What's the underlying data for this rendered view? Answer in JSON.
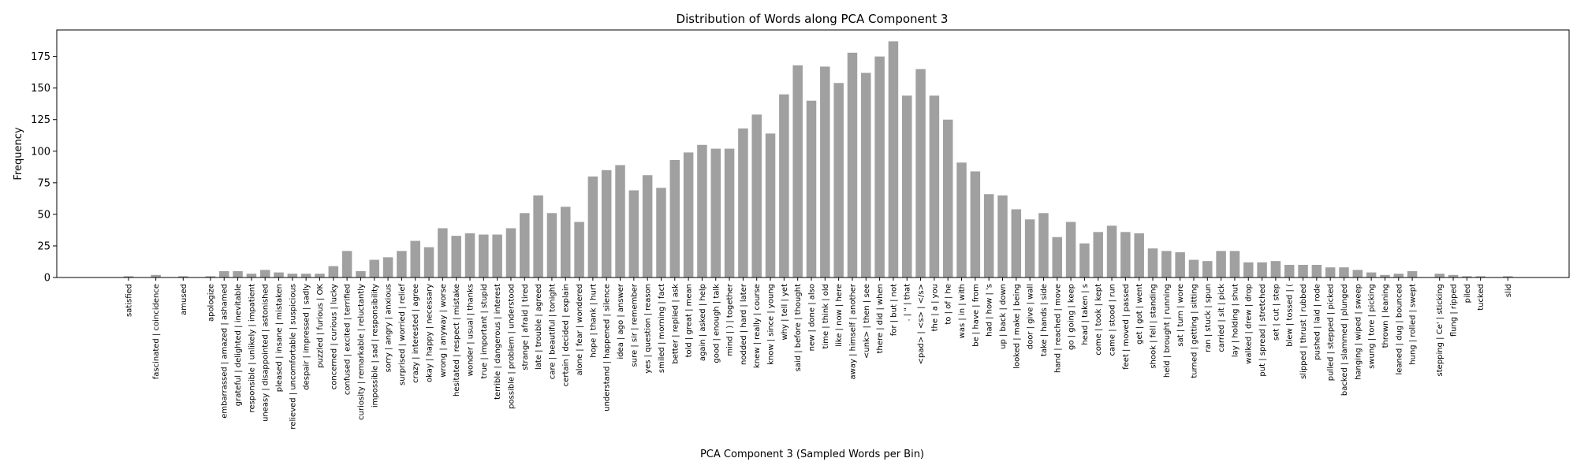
{
  "chart_data": {
    "type": "bar",
    "title": "Distribution of Words along PCA Component 3",
    "xlabel": "PCA Component 3 (Sampled Words per Bin)",
    "ylabel": "Frequency",
    "ylim": [
      0,
      196
    ],
    "yticks": [
      0,
      25,
      50,
      75,
      100,
      125,
      150,
      175
    ],
    "bar_color": "#a0a0a0",
    "grid": false,
    "categories": [
      "satisfied",
      "",
      "fascinated | coincidence",
      "",
      "amused",
      "",
      "apologize",
      "embarrassed | amazed | ashamed",
      "grateful | delighted | inevitable",
      "responsible | unlikely | impatient",
      "uneasy | disappointed | astonished",
      "pleased | insane | mistaken",
      "relieved | uncomfortable | suspicious",
      "despair | impressed | sadly",
      "puzzled | furious | OK",
      "concerned | curious | lucky",
      "confused | excited | terrified",
      "curiosity | remarkable | reluctantly",
      "impossible | sad | responsibility",
      "sorry | angry | anxious",
      "surprised | worried | relief",
      "crazy | interested | agree",
      "okay | happy | necessary",
      "wrong | anyway | worse",
      "hesitated | respect | mistake",
      "wonder | usual | thanks",
      "true | important | stupid",
      "terrible | dangerous | interest",
      "possible | problem | understood",
      "strange | afraid | tired",
      "late | trouble | agreed",
      "care | beautiful | tonight",
      "certain | decided | explain",
      "alone | fear | wondered",
      "hope | thank | hurt",
      "understand | happened | silence",
      "idea | ago | answer",
      "sure | sir | remember",
      "yes | question | reason",
      "smiled | morning | fact",
      "better | replied | ask",
      "told | great | mean",
      "again | asked | help",
      "good | enough | talk",
      "mind | ) | together",
      "nodded | hard | later",
      "knew | really | course",
      "know | since | young",
      "why | tell | yet",
      "said | before | thought",
      "new | done | also",
      "time | think | old",
      "like | now | here",
      "away | himself | another",
      "<unk> | then | see",
      "there | did | when",
      "for | but | not",
      ". | \" | that",
      "<pad> | <s> | </s>",
      "the | a | you",
      "to | of | he",
      "was | in | with",
      "be | have | from",
      "had | how | 's",
      "up | back | down",
      "looked | make | being",
      "door | give | wall",
      "take | hands | side",
      "hand | reached | move",
      "go | going | keep",
      "head | taken | s",
      "come | took | kept",
      "came | stood | run",
      "feet | moved | passed",
      "get | got | went",
      "shook | fell | standing",
      "held | brought | running",
      "sat | turn | wore",
      "turned | getting | sitting",
      "ran | stuck | spun",
      "carried | sit | pick",
      "lay | holding | shut",
      "walked | drew | drop",
      "put | spread | stretched",
      "set | cut | step",
      "blew | tossed | (",
      "slipped | thrust | rubbed",
      "pushed | laid | rode",
      "pulled | stepped | picked",
      "backed | slammed | plunged",
      "hanging | wiped | sweep",
      "swung | tore | picking",
      "thrown | leaning",
      "leaned | dug | bounced",
      "hung | rolled | swept",
      "",
      "stepping | Ce' | sticking",
      "flung | ripped",
      "piled",
      "tucked",
      "",
      "slid"
    ],
    "values": [
      1,
      0,
      2,
      0,
      1,
      0,
      1,
      5,
      5,
      3,
      6,
      4,
      3,
      3,
      3,
      9,
      21,
      5,
      14,
      16,
      21,
      29,
      24,
      39,
      33,
      35,
      34,
      34,
      39,
      51,
      65,
      51,
      56,
      44,
      80,
      85,
      89,
      69,
      81,
      71,
      93,
      99,
      105,
      102,
      102,
      118,
      129,
      114,
      145,
      168,
      140,
      167,
      154,
      178,
      162,
      175,
      187,
      144,
      165,
      144,
      125,
      91,
      84,
      66,
      65,
      54,
      46,
      51,
      32,
      44,
      27,
      36,
      41,
      36,
      35,
      23,
      21,
      20,
      14,
      13,
      21,
      21,
      12,
      12,
      13,
      10,
      10,
      10,
      8,
      8,
      6,
      4,
      2,
      3,
      5,
      0,
      3,
      2,
      1,
      1,
      0,
      1
    ]
  }
}
